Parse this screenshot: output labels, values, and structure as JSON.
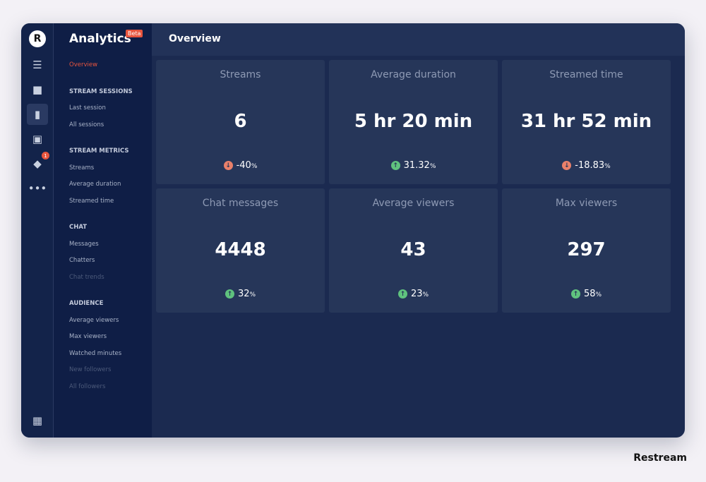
{
  "app": {
    "title": "Analytics",
    "beta": "Beta",
    "logo": "R",
    "notification_count": "1"
  },
  "rail": [
    {
      "icon": "toggle-icon"
    },
    {
      "icon": "video-camera-icon"
    },
    {
      "icon": "bar-chart-icon",
      "active": true
    },
    {
      "icon": "calendar-icon"
    },
    {
      "icon": "diamond-icon"
    },
    {
      "icon": "more-icon"
    },
    {
      "icon": "gift-icon"
    }
  ],
  "nav": {
    "overview": "Overview",
    "sections": [
      {
        "title": "STREAM SESSIONS",
        "items": [
          {
            "label": "Last session"
          },
          {
            "label": "All sessions"
          }
        ]
      },
      {
        "title": "STREAM METRICS",
        "items": [
          {
            "label": "Streams"
          },
          {
            "label": "Average duration"
          },
          {
            "label": "Streamed time"
          }
        ]
      },
      {
        "title": "CHAT",
        "items": [
          {
            "label": "Messages"
          },
          {
            "label": "Chatters"
          },
          {
            "label": "Chat trends",
            "disabled": true
          }
        ]
      },
      {
        "title": "AUDIENCE",
        "items": [
          {
            "label": "Average viewers"
          },
          {
            "label": "Max viewers"
          },
          {
            "label": "Watched minutes"
          },
          {
            "label": "New followers",
            "disabled": true
          },
          {
            "label": "All followers",
            "disabled": true
          }
        ]
      }
    ]
  },
  "header": {
    "title": "Overview"
  },
  "cards": [
    {
      "title": "Streams",
      "value": "6",
      "change": "-40",
      "direction": "down"
    },
    {
      "title": "Average duration",
      "value": "5 hr 20 min",
      "change": "31.32",
      "direction": "up"
    },
    {
      "title": "Streamed time",
      "value": "31 hr 52 min",
      "change": "-18.83",
      "direction": "down"
    },
    {
      "title": "Chat messages",
      "value": "4448",
      "change": "32",
      "direction": "up"
    },
    {
      "title": "Average viewers",
      "value": "43",
      "change": "23",
      "direction": "up"
    },
    {
      "title": "Max viewers",
      "value": "297",
      "change": "58",
      "direction": "up"
    }
  ],
  "percent": "%",
  "colors": {
    "up": "#5fc27e",
    "down": "#e9806a",
    "accent": "#e8553e"
  },
  "brand": "Restream"
}
